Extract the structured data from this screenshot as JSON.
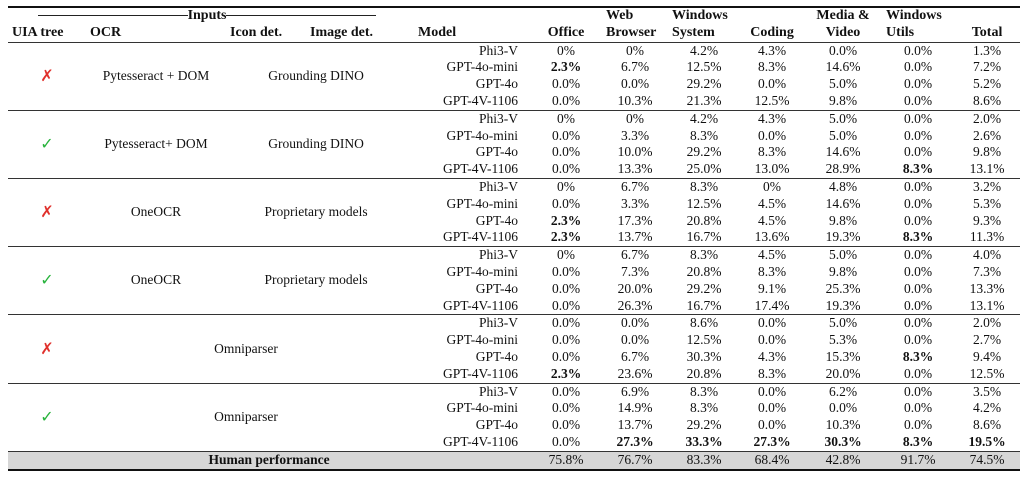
{
  "headers": {
    "inputs": "Inputs",
    "uia_tree": "UIA tree",
    "ocr": "OCR",
    "icon_det": "Icon det.",
    "image_det": "Image det.",
    "model": "Model",
    "office": "Office",
    "web_browser_1": "Web",
    "web_browser_2": "Browser",
    "windows_system_1": "Windows",
    "windows_system_2": "System",
    "coding": "Coding",
    "media_video_1": "Media &",
    "media_video_2": "Video",
    "windows_utils_1": "Windows",
    "windows_utils_2": "Utils",
    "total": "Total"
  },
  "groups": [
    {
      "uia": "✗",
      "uia_color": "#e0302b",
      "ocr": "Pytesseract + DOM",
      "det": "Grounding DINO",
      "rows": [
        {
          "model": "Phi3-V",
          "office": "0%",
          "web": "0%",
          "sys": "4.2%",
          "coding": "4.3%",
          "media": "0.0%",
          "utils": "0.0%",
          "total": "1.3%"
        },
        {
          "model": "GPT-4o-mini",
          "office": "2.3%",
          "web": "6.7%",
          "sys": "12.5%",
          "coding": "8.3%",
          "media": "14.6%",
          "utils": "0.0%",
          "total": "7.2%",
          "bold": [
            "office"
          ]
        },
        {
          "model": "GPT-4o",
          "office": "0.0%",
          "web": "0.0%",
          "sys": "29.2%",
          "coding": "0.0%",
          "media": "5.0%",
          "utils": "0.0%",
          "total": "5.2%"
        },
        {
          "model": "GPT-4V-1106",
          "office": "0.0%",
          "web": "10.3%",
          "sys": "21.3%",
          "coding": "12.5%",
          "media": "9.8%",
          "utils": "0.0%",
          "total": "8.6%"
        }
      ]
    },
    {
      "uia": "✓",
      "uia_color": "#27b33b",
      "ocr": "Pytesseract+ DOM",
      "det": "Grounding DINO",
      "rows": [
        {
          "model": "Phi3-V",
          "office": "0%",
          "web": "0%",
          "sys": "4.2%",
          "coding": "4.3%",
          "media": "5.0%",
          "utils": "0.0%",
          "total": "2.0%"
        },
        {
          "model": "GPT-4o-mini",
          "office": "0.0%",
          "web": "3.3%",
          "sys": "8.3%",
          "coding": "0.0%",
          "media": "5.0%",
          "utils": "0.0%",
          "total": "2.6%"
        },
        {
          "model": "GPT-4o",
          "office": "0.0%",
          "web": "10.0%",
          "sys": "29.2%",
          "coding": "8.3%",
          "media": "14.6%",
          "utils": "0.0%",
          "total": "9.8%"
        },
        {
          "model": "GPT-4V-1106",
          "office": "0.0%",
          "web": "13.3%",
          "sys": "25.0%",
          "coding": "13.0%",
          "media": "28.9%",
          "utils": "8.3%",
          "total": "13.1%",
          "bold": [
            "utils"
          ]
        }
      ]
    },
    {
      "uia": "✗",
      "uia_color": "#e0302b",
      "ocr": "OneOCR",
      "det": "Proprietary models",
      "rows": [
        {
          "model": "Phi3-V",
          "office": "0%",
          "web": "6.7%",
          "sys": "8.3%",
          "coding": "0%",
          "media": "4.8%",
          "utils": "0.0%",
          "total": "3.2%"
        },
        {
          "model": "GPT-4o-mini",
          "office": "0.0%",
          "web": "3.3%",
          "sys": "12.5%",
          "coding": "4.5%",
          "media": "14.6%",
          "utils": "0.0%",
          "total": "5.3%"
        },
        {
          "model": "GPT-4o",
          "office": "2.3%",
          "web": "17.3%",
          "sys": "20.8%",
          "coding": "4.5%",
          "media": "9.8%",
          "utils": "0.0%",
          "total": "9.3%",
          "bold": [
            "office"
          ]
        },
        {
          "model": "GPT-4V-1106",
          "office": "2.3%",
          "web": "13.7%",
          "sys": "16.7%",
          "coding": "13.6%",
          "media": "19.3%",
          "utils": "8.3%",
          "total": "11.3%",
          "bold": [
            "office",
            "utils"
          ]
        }
      ]
    },
    {
      "uia": "✓",
      "uia_color": "#27b33b",
      "ocr": "OneOCR",
      "det": "Proprietary models",
      "rows": [
        {
          "model": "Phi3-V",
          "office": "0%",
          "web": "6.7%",
          "sys": "8.3%",
          "coding": "4.5%",
          "media": "5.0%",
          "utils": "0.0%",
          "total": "4.0%"
        },
        {
          "model": "GPT-4o-mini",
          "office": "0.0%",
          "web": "7.3%",
          "sys": "20.8%",
          "coding": "8.3%",
          "media": "9.8%",
          "utils": "0.0%",
          "total": "7.3%"
        },
        {
          "model": "GPT-4o",
          "office": "0.0%",
          "web": "20.0%",
          "sys": "29.2%",
          "coding": "9.1%",
          "media": "25.3%",
          "utils": "0.0%",
          "total": "13.3%"
        },
        {
          "model": "GPT-4V-1106",
          "office": "0.0%",
          "web": "26.3%",
          "sys": "16.7%",
          "coding": "17.4%",
          "media": "19.3%",
          "utils": "0.0%",
          "total": "13.1%"
        }
      ]
    },
    {
      "uia": "✗",
      "uia_color": "#e0302b",
      "combined": "Omniparser",
      "rows": [
        {
          "model": "Phi3-V",
          "office": "0.0%",
          "web": "0.0%",
          "sys": "8.6%",
          "coding": "0.0%",
          "media": "5.0%",
          "utils": "0.0%",
          "total": "2.0%"
        },
        {
          "model": "GPT-4o-mini",
          "office": "0.0%",
          "web": "0.0%",
          "sys": "12.5%",
          "coding": "0.0%",
          "media": "5.3%",
          "utils": "0.0%",
          "total": "2.7%"
        },
        {
          "model": "GPT-4o",
          "office": "0.0%",
          "web": "6.7%",
          "sys": "30.3%",
          "coding": "4.3%",
          "media": "15.3%",
          "utils": "8.3%",
          "total": "9.4%",
          "bold": [
            "utils"
          ]
        },
        {
          "model": "GPT-4V-1106",
          "office": "2.3%",
          "web": "23.6%",
          "sys": "20.8%",
          "coding": "8.3%",
          "media": "20.0%",
          "utils": "0.0%",
          "total": "12.5%",
          "bold": [
            "office"
          ]
        }
      ]
    },
    {
      "uia": "✓",
      "uia_color": "#27b33b",
      "combined": "Omniparser",
      "rows": [
        {
          "model": "Phi3-V",
          "office": "0.0%",
          "web": "6.9%",
          "sys": "8.3%",
          "coding": "0.0%",
          "media": "6.2%",
          "utils": "0.0%",
          "total": "3.5%"
        },
        {
          "model": "GPT-4o-mini",
          "office": "0.0%",
          "web": "14.9%",
          "sys": "8.3%",
          "coding": "0.0%",
          "media": "0.0%",
          "utils": "0.0%",
          "total": "4.2%"
        },
        {
          "model": "GPT-4o",
          "office": "0.0%",
          "web": "13.7%",
          "sys": "29.2%",
          "coding": "0.0%",
          "media": "10.3%",
          "utils": "0.0%",
          "total": "8.6%"
        },
        {
          "model": "GPT-4V-1106",
          "office": "0.0%",
          "web": "27.3%",
          "sys": "33.3%",
          "coding": "27.3%",
          "media": "30.3%",
          "utils": "8.3%",
          "total": "19.5%",
          "bold": [
            "web",
            "sys",
            "coding",
            "media",
            "utils",
            "total"
          ]
        }
      ]
    }
  ],
  "human": {
    "label": "Human performance",
    "office": "75.8%",
    "web": "76.7%",
    "sys": "83.3%",
    "coding": "68.4%",
    "media": "42.8%",
    "utils": "91.7%",
    "total": "74.5%"
  }
}
